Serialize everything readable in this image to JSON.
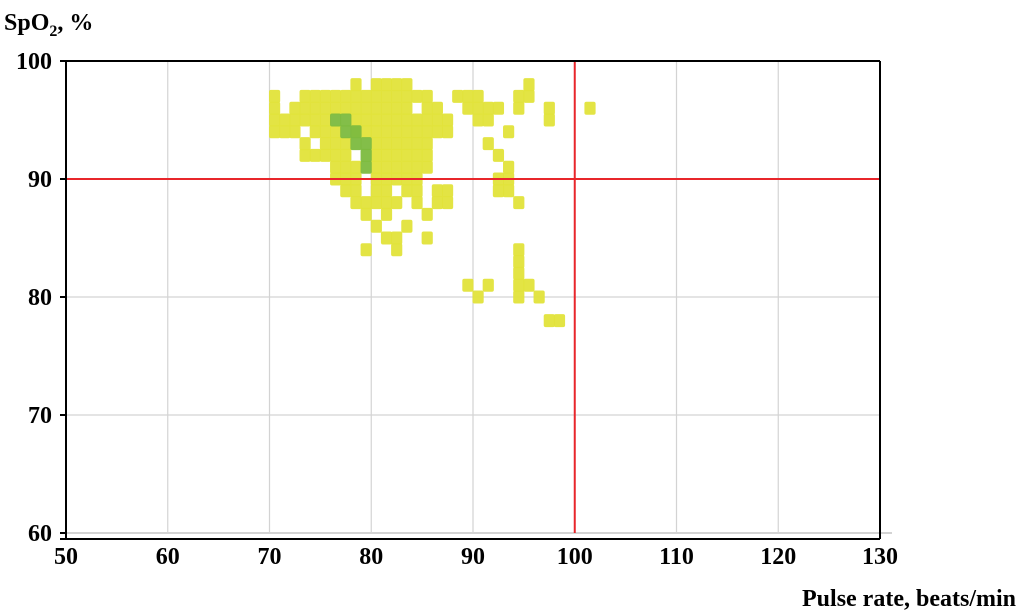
{
  "chart_data": {
    "type": "heatmap",
    "xlabel": "Pulse rate, beats/min",
    "ylabel": {
      "main": "SpO",
      "sub": "2",
      "tail": ", %"
    },
    "xlim": [
      50,
      130
    ],
    "ylim": [
      60,
      100
    ],
    "x_ticks": [
      50,
      60,
      70,
      80,
      90,
      100,
      110,
      120,
      130
    ],
    "y_ticks": [
      60,
      70,
      80,
      90,
      100
    ],
    "grid": true,
    "reference_lines": {
      "x": 100,
      "y": 90,
      "color": "#e8262b"
    },
    "cell_size": {
      "pulse": 1,
      "spo2": 1
    },
    "colors": {
      "low_density": "#e1e33a",
      "high_density": "#7cba3f",
      "grid": "#d3d3d3",
      "frame": "#000000"
    },
    "cells_low_density": [
      [
        70,
        97
      ],
      [
        70,
        96
      ],
      [
        70,
        95
      ],
      [
        70,
        94
      ],
      [
        72,
        96
      ],
      [
        72,
        95
      ],
      [
        72,
        94
      ],
      [
        73,
        95
      ],
      [
        74,
        94
      ],
      [
        75,
        94
      ],
      [
        73,
        97
      ],
      [
        74,
        97
      ],
      [
        75,
        97
      ],
      [
        76,
        97
      ],
      [
        77,
        97
      ],
      [
        78,
        97
      ],
      [
        79,
        97
      ],
      [
        80,
        97
      ],
      [
        81,
        97
      ],
      [
        82,
        97
      ],
      [
        83,
        97
      ],
      [
        84,
        97
      ],
      [
        78,
        98
      ],
      [
        80,
        98
      ],
      [
        81,
        98
      ],
      [
        82,
        98
      ],
      [
        83,
        98
      ],
      [
        74,
        96
      ],
      [
        75,
        96
      ],
      [
        76,
        96
      ],
      [
        77,
        96
      ],
      [
        78,
        96
      ],
      [
        79,
        96
      ],
      [
        80,
        96
      ],
      [
        81,
        96
      ],
      [
        82,
        96
      ],
      [
        83,
        96
      ],
      [
        78,
        95
      ],
      [
        79,
        95
      ],
      [
        80,
        95
      ],
      [
        81,
        95
      ],
      [
        82,
        95
      ],
      [
        83,
        95
      ],
      [
        84,
        95
      ],
      [
        75,
        95
      ],
      [
        74,
        95
      ],
      [
        76,
        94
      ],
      [
        78,
        94
      ],
      [
        79,
        94
      ],
      [
        80,
        94
      ],
      [
        81,
        94
      ],
      [
        82,
        94
      ],
      [
        83,
        94
      ],
      [
        84,
        94
      ],
      [
        75,
        93
      ],
      [
        76,
        93
      ],
      [
        77,
        93
      ],
      [
        80,
        93
      ],
      [
        81,
        93
      ],
      [
        82,
        93
      ],
      [
        83,
        93
      ],
      [
        84,
        93
      ],
      [
        85,
        93
      ],
      [
        74,
        92
      ],
      [
        75,
        92
      ],
      [
        76,
        92
      ],
      [
        77,
        92
      ],
      [
        80,
        92
      ],
      [
        81,
        92
      ],
      [
        82,
        92
      ],
      [
        83,
        92
      ],
      [
        84,
        92
      ],
      [
        73,
        92
      ],
      [
        73,
        93
      ],
      [
        76,
        91
      ],
      [
        77,
        91
      ],
      [
        78,
        91
      ],
      [
        80,
        91
      ],
      [
        81,
        91
      ],
      [
        82,
        91
      ],
      [
        83,
        91
      ],
      [
        84,
        91
      ],
      [
        85,
        91
      ],
      [
        76,
        90
      ],
      [
        77,
        90
      ],
      [
        78,
        90
      ],
      [
        80,
        90
      ],
      [
        81,
        90
      ],
      [
        82,
        90
      ],
      [
        83,
        90
      ],
      [
        84,
        90
      ],
      [
        78,
        89
      ],
      [
        80,
        89
      ],
      [
        81,
        89
      ],
      [
        84,
        89
      ],
      [
        86,
        89
      ],
      [
        87,
        89
      ],
      [
        77,
        89
      ],
      [
        79,
        88
      ],
      [
        80,
        88
      ],
      [
        81,
        88
      ],
      [
        86,
        88
      ],
      [
        87,
        88
      ],
      [
        79,
        87
      ],
      [
        81,
        87
      ],
      [
        84,
        88
      ],
      [
        85,
        87
      ],
      [
        80,
        86
      ],
      [
        81,
        85
      ],
      [
        82,
        85
      ],
      [
        83,
        86
      ],
      [
        85,
        85
      ],
      [
        79,
        84
      ],
      [
        82,
        84
      ],
      [
        85,
        97
      ],
      [
        85,
        96
      ],
      [
        86,
        96
      ],
      [
        86,
        95
      ],
      [
        87,
        95
      ],
      [
        85,
        95
      ],
      [
        85,
        94
      ],
      [
        86,
        94
      ],
      [
        87,
        94
      ],
      [
        85,
        92
      ],
      [
        88,
        97
      ],
      [
        89,
        97
      ],
      [
        90,
        97
      ],
      [
        91,
        96
      ],
      [
        89,
        96
      ],
      [
        90,
        96
      ],
      [
        92,
        96
      ],
      [
        90,
        95
      ],
      [
        91,
        95
      ],
      [
        93,
        94
      ],
      [
        91,
        93
      ],
      [
        92,
        92
      ],
      [
        93,
        91
      ],
      [
        92,
        90
      ],
      [
        93,
        90
      ],
      [
        93,
        89
      ],
      [
        92,
        89
      ],
      [
        94,
        88
      ],
      [
        94,
        97
      ],
      [
        95,
        97
      ],
      [
        95,
        98
      ],
      [
        94,
        96
      ],
      [
        97,
        96
      ],
      [
        97,
        95
      ],
      [
        101,
        96
      ],
      [
        94,
        84
      ],
      [
        94,
        83
      ],
      [
        94,
        82
      ],
      [
        94,
        81
      ],
      [
        95,
        81
      ],
      [
        94,
        80
      ],
      [
        96,
        80
      ],
      [
        89,
        81
      ],
      [
        91,
        81
      ],
      [
        90,
        80
      ],
      [
        97,
        78
      ],
      [
        98,
        78
      ],
      [
        71,
        94
      ],
      [
        71,
        95
      ],
      [
        73,
        96
      ],
      [
        83,
        89
      ],
      [
        82,
        88
      ],
      [
        78,
        88
      ]
    ],
    "cells_high_density": [
      [
        76,
        95
      ],
      [
        77,
        95
      ],
      [
        77,
        94
      ],
      [
        78,
        94
      ],
      [
        78,
        93
      ],
      [
        79,
        93
      ],
      [
        79,
        92
      ],
      [
        79,
        91
      ]
    ]
  }
}
